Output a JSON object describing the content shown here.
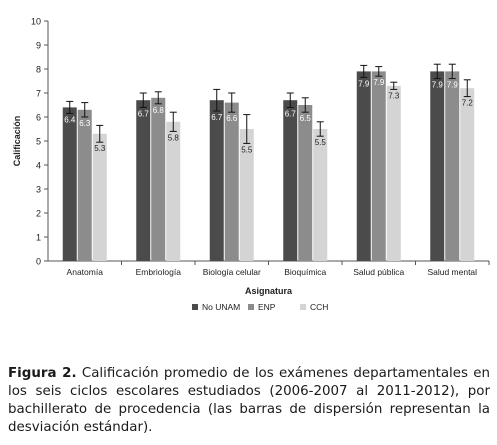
{
  "chart_data": {
    "type": "bar",
    "title": "",
    "xlabel": "Asignatura",
    "ylabel": "Calificación",
    "ylim": [
      0,
      10
    ],
    "yticks": [
      "0",
      "1",
      "2",
      "3",
      "4",
      "5",
      "6",
      "7",
      "8",
      "9",
      "10"
    ],
    "grid": false,
    "legend_position": "bottom",
    "error_bars": true,
    "categories": [
      "Anatomía",
      "Embriología",
      "Biología celular",
      "Bioquímica",
      "Salud pública",
      "Salud mental"
    ],
    "series": [
      {
        "name": "No UNAM",
        "color": "#4b4b4b",
        "values": [
          6.4,
          6.7,
          6.7,
          6.7,
          7.9,
          7.9
        ],
        "labels": [
          "6.4",
          "6.7",
          "6.7",
          "6.7",
          "7.9",
          "7.9"
        ],
        "errors": [
          0.25,
          0.3,
          0.45,
          0.3,
          0.25,
          0.3
        ]
      },
      {
        "name": "ENP",
        "color": "#8c8c8c",
        "values": [
          6.3,
          6.8,
          6.6,
          6.5,
          7.9,
          7.9
        ],
        "labels": [
          "6.3",
          "6.8",
          "6.6",
          "6.5",
          "7.9",
          "7.9"
        ],
        "errors": [
          0.3,
          0.25,
          0.4,
          0.3,
          0.2,
          0.3
        ]
      },
      {
        "name": "CCH",
        "color": "#d4d4d4",
        "values": [
          5.3,
          5.8,
          5.5,
          5.5,
          7.3,
          7.2
        ],
        "labels": [
          "5.3",
          "5.8",
          "5.5",
          "5.5",
          "7.3",
          "7.2"
        ],
        "errors": [
          0.35,
          0.4,
          0.6,
          0.3,
          0.15,
          0.35
        ]
      }
    ]
  },
  "caption": {
    "label": "Figura 2.",
    "text": " Calificación promedio de los exámenes departamentales en los seis ciclos escolares estudiados (2006-2007 al 2011-2012), por bachillerato de procedencia (las barras de dispersión representan la desviación estándar)."
  }
}
